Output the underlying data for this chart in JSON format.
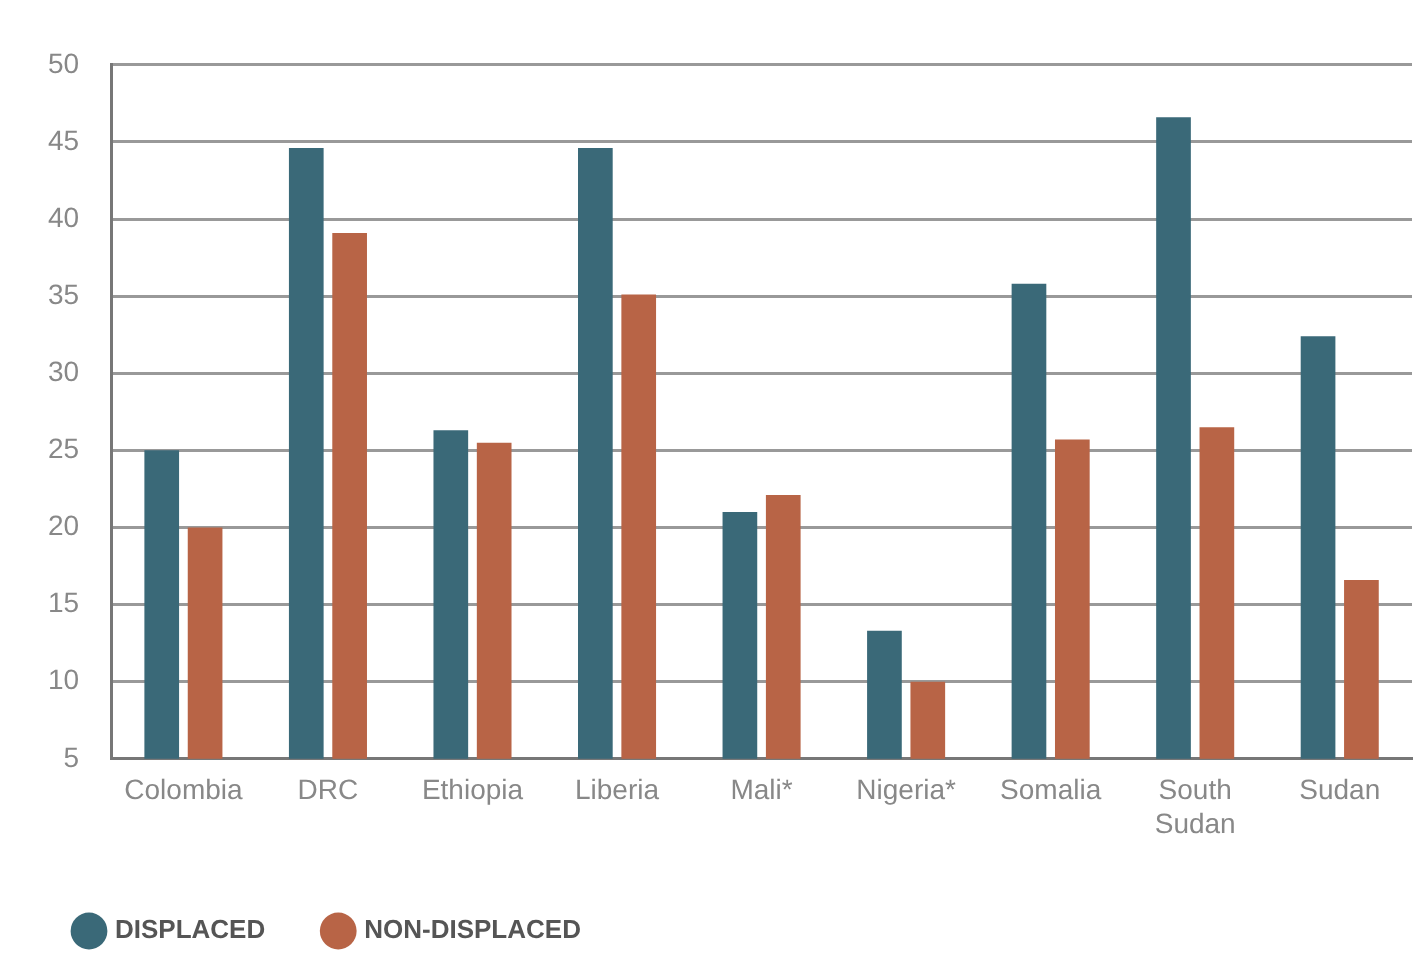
{
  "chart_data": {
    "type": "bar",
    "categories": [
      "Colombia",
      "DRC",
      "Ethiopia",
      "Liberia",
      "Mali*",
      "Nigeria*",
      "Somalia",
      "South Sudan",
      "Sudan"
    ],
    "series": [
      {
        "name": "DISPLACED",
        "color": "#3a6978",
        "values": [
          25,
          44.6,
          26.3,
          44.6,
          21,
          13.3,
          35.8,
          46.6,
          32.4
        ]
      },
      {
        "name": "NON-DISPLACED",
        "color": "#b86446",
        "values": [
          20,
          39.1,
          25.5,
          35.1,
          22.1,
          10,
          25.7,
          26.5,
          16.6
        ]
      }
    ],
    "ylim": [
      5,
      50
    ],
    "yticks": [
      5,
      10,
      15,
      20,
      25,
      30,
      35,
      40,
      45,
      50
    ],
    "grid": "y",
    "legend": "bottom"
  }
}
